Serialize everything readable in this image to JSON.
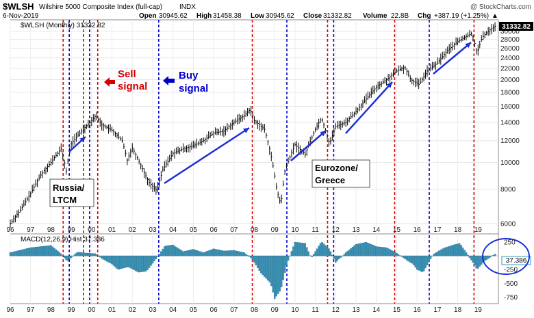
{
  "header": {
    "symbol": "$WLSH",
    "name": "Wilshire 5000 Composite Index (full-cap)",
    "exchange": "INDX",
    "watermark": "@ StockCharts.com",
    "date": "6-Nov-2019",
    "open_label": "Open",
    "open": "30945.62",
    "high_label": "High",
    "high": "31458.38",
    "low_label": "Low",
    "low": "30945.62",
    "close_label": "Close",
    "close": "31332.82",
    "volume_label": "Volume",
    "volume": "22.8B",
    "chg_label": "Chg",
    "chg": "+387.19 (+1.25%)",
    "chg_arrow": "▲"
  },
  "price_panel": {
    "legend": "$WLSH (Monthly) 31332.82",
    "last_value": "31332.82",
    "annotations": {
      "sell_line1": "Sell",
      "sell_line2": "signal",
      "buy_line1": "Buy",
      "buy_line2": "signal",
      "russia_line1": "Russia/",
      "russia_line2": "LTCM",
      "euro_line1": "Eurozone/",
      "euro_line2": "Greece"
    }
  },
  "macd_panel": {
    "legend": "MACD(12,26,9) Hist 37.386",
    "last_value": "37.386"
  },
  "colors": {
    "bars": "#000000",
    "sell": "#d40000",
    "buy": "#0000cc",
    "hist": "#3a94b8",
    "arrow": "#1a2fd6"
  },
  "chart_data": [
    {
      "type": "line",
      "series_name": "$WLSH (Monthly)",
      "scale": "log",
      "ylim": [
        5500,
        33000
      ],
      "yticks": [
        6000,
        8000,
        10000,
        12000,
        14000,
        16000,
        18000,
        20000,
        22000,
        24000,
        26000,
        28000,
        30000
      ],
      "xticks": [
        "96",
        "97",
        "98",
        "99",
        "00",
        "01",
        "02",
        "03",
        "04",
        "05",
        "06",
        "07",
        "08",
        "09",
        "10",
        "11",
        "12",
        "13",
        "14",
        "15",
        "16",
        "17",
        "18",
        "19"
      ],
      "x": [
        1996.0,
        1996.5,
        1997.0,
        1997.5,
        1998.0,
        1998.5,
        1998.75,
        1999.0,
        1999.5,
        2000.0,
        2000.2,
        2000.5,
        2001.0,
        2001.5,
        2001.75,
        2002.0,
        2002.5,
        2002.8,
        2003.2,
        2003.5,
        2004.0,
        2004.5,
        2005.0,
        2005.5,
        2006.0,
        2006.5,
        2007.0,
        2007.5,
        2007.8,
        2008.0,
        2008.5,
        2008.8,
        2009.1,
        2009.3,
        2009.5,
        2010.0,
        2010.5,
        2011.0,
        2011.3,
        2011.7,
        2012.0,
        2012.5,
        2013.0,
        2013.5,
        2014.0,
        2014.5,
        2015.0,
        2015.4,
        2015.7,
        2016.1,
        2016.5,
        2017.0,
        2017.5,
        2018.0,
        2018.7,
        2018.95,
        2019.2,
        2019.5,
        2019.85
      ],
      "y": [
        6000,
        6700,
        7700,
        9000,
        10000,
        11200,
        9300,
        11700,
        13000,
        14200,
        14800,
        13700,
        13100,
        12000,
        10200,
        11300,
        9500,
        8500,
        7900,
        9400,
        10800,
        11200,
        11500,
        12000,
        12800,
        13000,
        14000,
        14800,
        15600,
        14200,
        13200,
        10800,
        8000,
        7000,
        9300,
        11600,
        10700,
        13200,
        14500,
        11700,
        13500,
        14000,
        15300,
        17000,
        18800,
        20000,
        21500,
        22200,
        20000,
        19200,
        21500,
        23000,
        25500,
        27500,
        29500,
        25000,
        28500,
        30000,
        31332
      ]
    },
    {
      "type": "bar",
      "series_name": "MACD(12,26,9) Hist",
      "ylim": [
        -870,
        400
      ],
      "yticks": [
        250,
        -250,
        -500,
        -750
      ],
      "x": [
        1996.0,
        1997.0,
        1998.0,
        1998.5,
        1998.8,
        1999.3,
        1999.8,
        2000.2,
        2000.5,
        2001.0,
        2001.3,
        2001.8,
        2002.3,
        2002.7,
        2003.2,
        2003.6,
        2004.0,
        2004.5,
        2005.0,
        2005.5,
        2006.0,
        2006.5,
        2007.0,
        2007.5,
        2007.9,
        2008.3,
        2008.8,
        2009.0,
        2009.3,
        2009.6,
        2010.0,
        2010.5,
        2010.8,
        2011.3,
        2011.7,
        2012.0,
        2012.5,
        2013.0,
        2013.5,
        2014.0,
        2014.5,
        2015.0,
        2015.5,
        2015.8,
        2016.0,
        2016.3,
        2016.8,
        2017.3,
        2017.8,
        2018.1,
        2018.4,
        2018.8,
        2018.95,
        2019.3,
        2019.85
      ],
      "values": [
        60,
        150,
        190,
        40,
        -100,
        70,
        50,
        40,
        -50,
        -150,
        -250,
        -200,
        -300,
        -280,
        -40,
        180,
        200,
        80,
        120,
        60,
        130,
        90,
        100,
        60,
        -60,
        -300,
        -500,
        -780,
        -620,
        -150,
        250,
        230,
        -40,
        260,
        120,
        -120,
        60,
        210,
        250,
        170,
        150,
        50,
        -80,
        -150,
        -250,
        -300,
        30,
        140,
        200,
        230,
        70,
        -150,
        -250,
        -100,
        37
      ]
    }
  ]
}
